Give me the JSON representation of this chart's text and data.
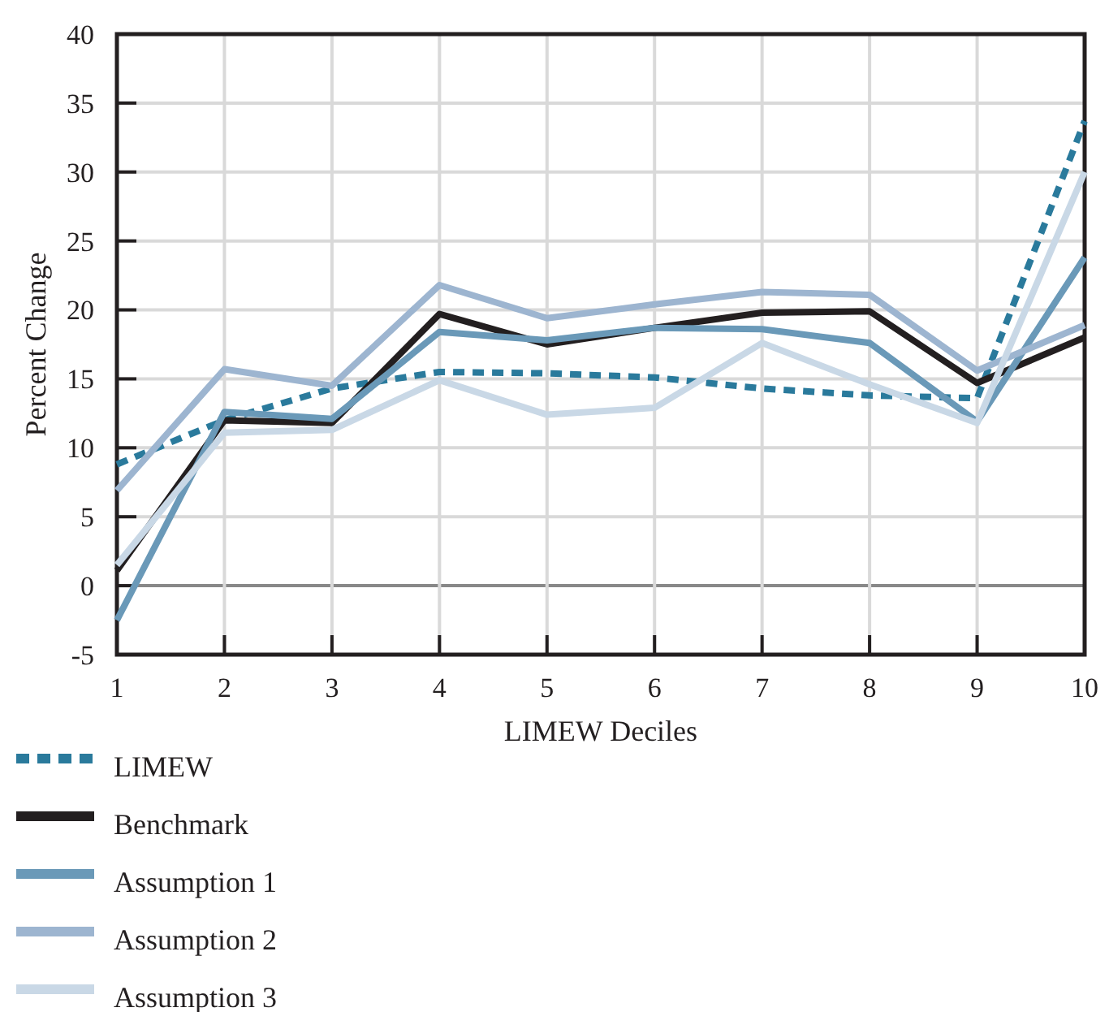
{
  "chart_data": {
    "type": "line",
    "xlabel": "LIMEW Deciles",
    "ylabel": "Percent Change",
    "categories": [
      "1",
      "2",
      "3",
      "4",
      "5",
      "6",
      "7",
      "8",
      "9",
      "10"
    ],
    "ylim": [
      -5,
      40
    ],
    "yticks": [
      -5,
      0,
      5,
      10,
      15,
      20,
      25,
      30,
      35,
      40
    ],
    "grid": true,
    "legend": "bottom left",
    "series": [
      {
        "name": "LIMEW",
        "color": "#2a7a9c",
        "line_style": "dashed",
        "values": [
          8.8,
          12.0,
          14.3,
          15.5,
          15.4,
          15.1,
          14.3,
          13.8,
          13.6,
          33.7
        ]
      },
      {
        "name": "Benchmark",
        "color": "#231f20",
        "values": [
          1.1,
          12.0,
          11.8,
          19.7,
          17.5,
          18.7,
          19.8,
          19.9,
          14.7,
          18.0
        ]
      },
      {
        "name": "Assumption 1",
        "color": "#6a99b8",
        "values": [
          -2.5,
          12.6,
          12.1,
          18.4,
          17.8,
          18.7,
          18.6,
          17.6,
          11.9,
          23.8
        ]
      },
      {
        "name": "Assumption 2",
        "color": "#9db5d0",
        "values": [
          6.9,
          15.7,
          14.5,
          21.8,
          19.4,
          20.4,
          21.3,
          21.1,
          15.6,
          18.9
        ]
      },
      {
        "name": "Assumption 3",
        "color": "#c9d8e6",
        "values": [
          1.5,
          11.1,
          11.3,
          14.9,
          12.4,
          12.9,
          17.6,
          14.6,
          11.8,
          30.0
        ]
      }
    ]
  }
}
